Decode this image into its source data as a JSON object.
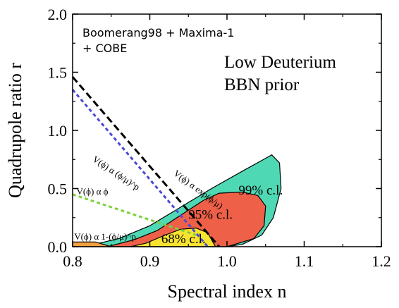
{
  "chart_data": {
    "type": "area",
    "xlabel": "Spectral index n",
    "ylabel": "Quadrupole ratio r",
    "xlim": [
      0.8,
      1.2
    ],
    "ylim": [
      0.0,
      2.0
    ],
    "x_ticks": [
      "0.8",
      "0.9",
      "1.0",
      "1.1",
      "1.2"
    ],
    "y_ticks": [
      "0.0",
      "0.5",
      "1.0",
      "1.5",
      "2.0"
    ],
    "grid": false,
    "legend": {
      "dataset_line1": "Boomerang98 + Maxima-1",
      "dataset_line2": "+ COBE",
      "prior_line1": "Low Deuterium",
      "prior_line2": "BBN prior"
    },
    "regions": [
      {
        "name": "99% c.l.",
        "label": "99% c.l.",
        "color": "#4fd8b4",
        "boundary": [
          [
            0.815,
            0.0
          ],
          [
            0.86,
            0.07
          ],
          [
            0.9,
            0.18
          ],
          [
            0.94,
            0.34
          ],
          [
            0.98,
            0.5
          ],
          [
            1.02,
            0.65
          ],
          [
            1.05,
            0.76
          ],
          [
            1.058,
            0.79
          ],
          [
            1.068,
            0.72
          ],
          [
            1.07,
            0.5
          ],
          [
            1.06,
            0.25
          ],
          [
            1.045,
            0.1
          ],
          [
            1.02,
            0.02
          ],
          [
            1.0,
            0.0
          ]
        ]
      },
      {
        "name": "95% c.l.",
        "label": "95% c.l.",
        "color": "#ee6048",
        "boundary": [
          [
            0.845,
            0.0
          ],
          [
            0.88,
            0.06
          ],
          [
            0.91,
            0.14
          ],
          [
            0.94,
            0.27
          ],
          [
            0.97,
            0.4
          ],
          [
            0.99,
            0.46
          ],
          [
            1.02,
            0.47
          ],
          [
            1.04,
            0.44
          ],
          [
            1.05,
            0.35
          ],
          [
            1.048,
            0.18
          ],
          [
            1.035,
            0.07
          ],
          [
            1.0,
            0.0
          ]
        ]
      },
      {
        "name": "68% c.l.",
        "label": "68% c.l.",
        "color": "#f8e430",
        "boundary": [
          [
            0.875,
            0.0
          ],
          [
            0.895,
            0.03
          ],
          [
            0.92,
            0.1
          ],
          [
            0.94,
            0.15
          ],
          [
            0.96,
            0.16
          ],
          [
            0.975,
            0.12
          ],
          [
            0.98,
            0.06
          ],
          [
            0.985,
            0.0
          ]
        ]
      },
      {
        "name": "bottom strip",
        "color": "#f5a040",
        "boundary": [
          [
            0.8,
            0.0
          ],
          [
            0.8,
            0.04
          ],
          [
            0.83,
            0.04
          ],
          [
            0.85,
            0.0
          ]
        ]
      }
    ],
    "model_lines": [
      {
        "label": "V(ϕ) α exp(ϕ/μ)",
        "color": "#000000",
        "dash": "10,5",
        "points": [
          [
            0.8,
            1.46
          ],
          [
            0.99,
            0.0
          ]
        ]
      },
      {
        "label": "V(ϕ) α (ϕ/μ)^p",
        "color": "#4a4ad8",
        "dash": "5,4",
        "points": [
          [
            0.8,
            1.35
          ],
          [
            0.975,
            0.0
          ]
        ]
      },
      {
        "label": "V(ϕ) α ϕ",
        "color": "#7fd040",
        "dash": "5,4",
        "points": [
          [
            0.8,
            0.45
          ],
          [
            0.96,
            0.1
          ]
        ]
      },
      {
        "label": "V(ϕ) α 1-(ϕ/μ)^p",
        "color": "#000000",
        "dash": "",
        "points": []
      }
    ],
    "line_label_positions": [
      {
        "text_key": 0,
        "x": 0.93,
        "y": 0.62,
        "angle": 36.4
      },
      {
        "text_key": 1,
        "x": 0.825,
        "y": 0.74,
        "angle": 33.4
      },
      {
        "text_key": 2,
        "x": 0.805,
        "y": 0.45,
        "angle": 0
      },
      {
        "text_key": 3,
        "x": 0.802,
        "y": 0.06,
        "angle": 0
      }
    ]
  }
}
